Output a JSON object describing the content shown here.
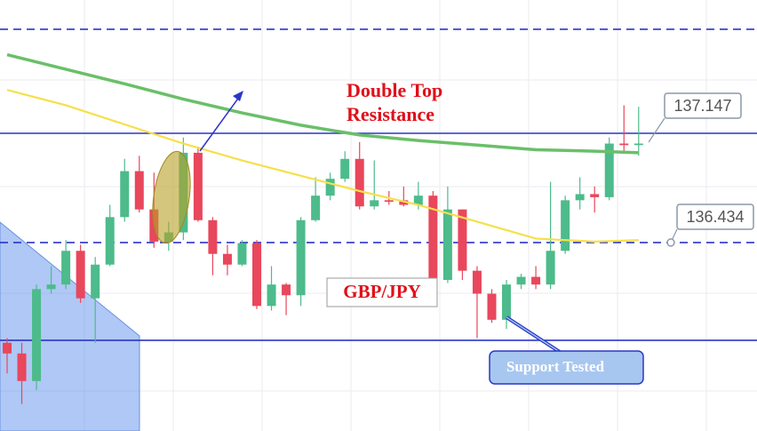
{
  "chart_data": {
    "type": "candlestick",
    "ylim": [
      135.204,
      138.017
    ],
    "up_color": "#4dbb8b",
    "down_color": "#e8475c",
    "open": [
      135.78,
      135.71,
      135.53,
      136.13,
      136.16,
      136.38,
      136.07,
      136.29,
      136.6,
      136.9,
      136.65,
      136.44,
      136.5,
      137.02,
      136.58,
      136.36,
      136.29,
      136.43,
      136.02,
      136.16,
      136.09,
      136.58,
      136.74,
      136.85,
      136.98,
      136.67,
      136.71,
      136.71,
      136.68,
      136.74,
      136.19,
      136.65,
      136.25,
      136.1,
      135.93,
      136.16,
      136.21,
      136.16,
      136.38,
      136.71,
      136.75,
      136.73,
      137.08,
      137.07
    ],
    "high": [
      135.81,
      135.78,
      136.16,
      136.28,
      136.45,
      136.42,
      136.34,
      136.68,
      136.98,
      137.0,
      136.89,
      136.57,
      137.12,
      137.06,
      136.6,
      136.42,
      136.45,
      136.45,
      136.28,
      136.17,
      136.6,
      136.86,
      136.89,
      137.03,
      137.09,
      136.97,
      136.77,
      136.8,
      136.83,
      136.77,
      136.8,
      136.65,
      136.28,
      136.13,
      136.19,
      136.23,
      136.28,
      136.83,
      136.74,
      136.86,
      136.8,
      137.12,
      137.33,
      137.32
    ],
    "low": [
      135.58,
      135.38,
      135.47,
      136.1,
      136.13,
      136.04,
      135.78,
      136.28,
      136.57,
      136.63,
      136.4,
      136.38,
      136.45,
      136.57,
      136.22,
      136.22,
      136.28,
      136.0,
      135.99,
      135.96,
      136.02,
      136.57,
      136.71,
      136.83,
      136.65,
      136.65,
      136.68,
      136.67,
      136.65,
      136.17,
      136.17,
      136.19,
      135.81,
      135.91,
      135.87,
      136.13,
      136.13,
      136.13,
      136.36,
      136.65,
      136.63,
      136.71,
      137.03,
      137.0
    ],
    "close": [
      135.71,
      135.53,
      136.13,
      136.16,
      136.38,
      136.07,
      136.29,
      136.6,
      136.9,
      136.65,
      136.44,
      136.5,
      137.02,
      136.58,
      136.36,
      136.29,
      136.43,
      136.02,
      136.16,
      136.09,
      136.58,
      136.74,
      136.85,
      136.98,
      136.67,
      136.71,
      136.7,
      136.68,
      136.74,
      136.19,
      136.65,
      136.25,
      136.1,
      135.93,
      136.16,
      136.21,
      136.16,
      136.38,
      136.71,
      136.75,
      136.73,
      137.08,
      137.07,
      137.08
    ],
    "series": [
      {
        "color": "#6abf69",
        "x": [
          0,
          4,
          8,
          12,
          16,
          20,
          24,
          28,
          32,
          36,
          40,
          43
        ],
        "values": [
          137.66,
          137.565,
          137.47,
          137.37,
          137.28,
          137.2,
          137.136,
          137.1,
          137.07,
          137.04,
          137.03,
          137.02
        ]
      },
      {
        "color": "#f5e04a",
        "x": [
          0,
          4,
          8,
          12,
          16,
          20,
          24,
          28,
          32,
          36,
          40,
          43
        ],
        "values": [
          137.43,
          137.33,
          137.205,
          137.08,
          136.97,
          136.87,
          136.77,
          136.68,
          136.57,
          136.46,
          136.44,
          136.45
        ]
      }
    ],
    "hlines": [
      {
        "value": 137.826,
        "style": "dashed"
      },
      {
        "value": 137.147,
        "style": "solid"
      },
      {
        "value": 136.434,
        "style": "dashed"
      },
      {
        "value": 135.796,
        "style": "solid"
      }
    ],
    "hline_color": "#2b35c9",
    "price_labels": [
      137.147,
      136.434
    ],
    "annotations": [
      "Double Top",
      "Resistance",
      "GBP/JPY",
      "Support Tested"
    ]
  }
}
